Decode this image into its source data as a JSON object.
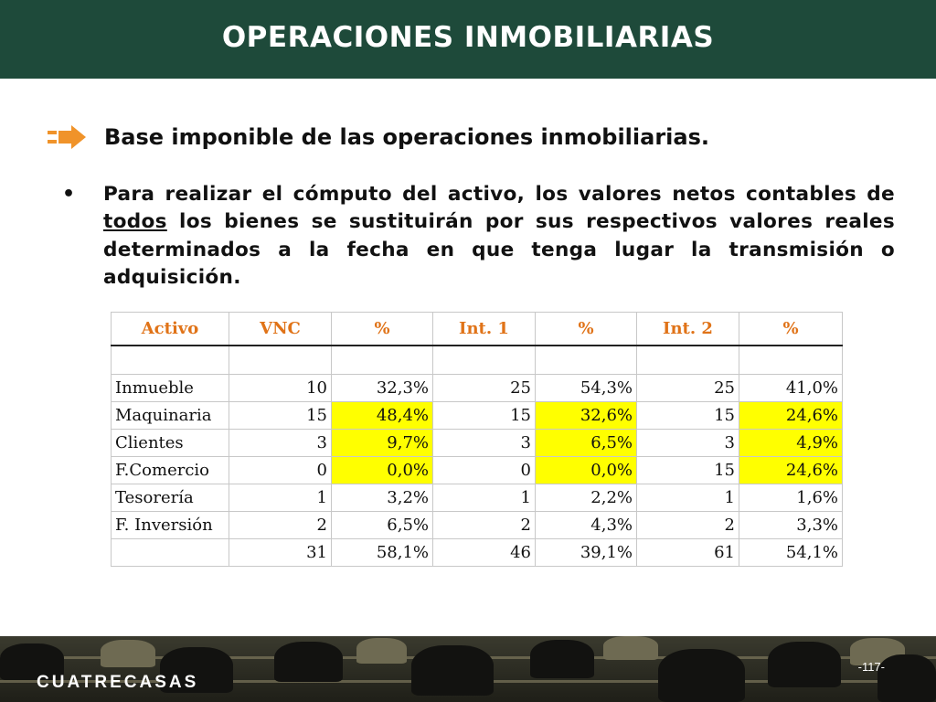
{
  "header": {
    "title": "OPERACIONES INMOBILIARIAS"
  },
  "section": {
    "heading": "Base imponible de las operaciones inmobiliarias."
  },
  "paragraph": {
    "bullet": "•",
    "before": "Para realizar el cómputo del activo, los valores netos contables de ",
    "underlined": "todos",
    "after": " los bienes se sustituirán por sus respectivos valores reales determinados a la fecha en que tenga lugar la transmisión o adquisición."
  },
  "table": {
    "headers": [
      "Activo",
      "VNC",
      "%",
      "Int. 1",
      "%",
      "Int. 2",
      "%"
    ],
    "rows": [
      [
        "Inmueble",
        "10",
        "32,3%",
        "25",
        "54,3%",
        "25",
        "41,0%"
      ],
      [
        "Maquinaria",
        "15",
        "48,4%",
        "15",
        "32,6%",
        "15",
        "24,6%"
      ],
      [
        "Clientes",
        "3",
        "9,7%",
        "3",
        "6,5%",
        "3",
        "4,9%"
      ],
      [
        "F.Comercio",
        "0",
        "0,0%",
        "0",
        "0,0%",
        "15",
        "24,6%"
      ],
      [
        "Tesorería",
        "1",
        "3,2%",
        "1",
        "2,2%",
        "1",
        "1,6%"
      ],
      [
        "F. Inversión",
        "2",
        "6,5%",
        "2",
        "4,3%",
        "2",
        "3,3%"
      ]
    ],
    "totals": [
      "",
      "31",
      "58,1%",
      "46",
      "39,1%",
      "61",
      "54,1%"
    ],
    "highlight_color": "#ffff00",
    "header_color": "#e07318"
  },
  "footer": {
    "brand": "CUATRECASAS",
    "page": "-117-"
  },
  "colors": {
    "title_bar": "#1e4a3a",
    "arrow": "#f0932a"
  }
}
